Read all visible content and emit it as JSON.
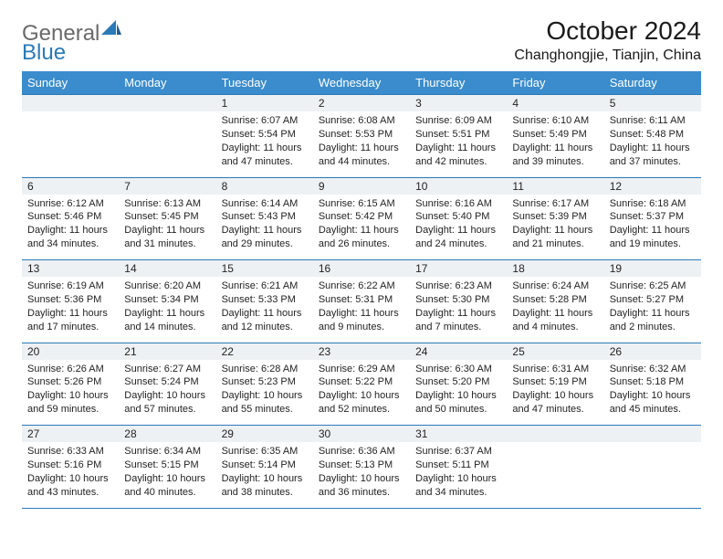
{
  "logo": {
    "general": "General",
    "blue": "Blue"
  },
  "title": "October 2024",
  "location": "Changhongjie, Tianjin, China",
  "colors": {
    "header_bg": "#3b8ccc",
    "header_text": "#ffffff",
    "daynum_bg": "#eef1f3",
    "border": "#2a7ab8",
    "text": "#232323",
    "logo_grey": "#6a6a6a",
    "logo_blue": "#2a7ab8"
  },
  "fonts": {
    "title_size": 28,
    "location_size": 16,
    "dow_size": 13,
    "cell_size": 11
  },
  "dow": [
    "Sunday",
    "Monday",
    "Tuesday",
    "Wednesday",
    "Thursday",
    "Friday",
    "Saturday"
  ],
  "weeks": [
    [
      null,
      null,
      {
        "n": "1",
        "sr": "6:07 AM",
        "ss": "5:54 PM",
        "dl": "11 hours and 47 minutes."
      },
      {
        "n": "2",
        "sr": "6:08 AM",
        "ss": "5:53 PM",
        "dl": "11 hours and 44 minutes."
      },
      {
        "n": "3",
        "sr": "6:09 AM",
        "ss": "5:51 PM",
        "dl": "11 hours and 42 minutes."
      },
      {
        "n": "4",
        "sr": "6:10 AM",
        "ss": "5:49 PM",
        "dl": "11 hours and 39 minutes."
      },
      {
        "n": "5",
        "sr": "6:11 AM",
        "ss": "5:48 PM",
        "dl": "11 hours and 37 minutes."
      }
    ],
    [
      {
        "n": "6",
        "sr": "6:12 AM",
        "ss": "5:46 PM",
        "dl": "11 hours and 34 minutes."
      },
      {
        "n": "7",
        "sr": "6:13 AM",
        "ss": "5:45 PM",
        "dl": "11 hours and 31 minutes."
      },
      {
        "n": "8",
        "sr": "6:14 AM",
        "ss": "5:43 PM",
        "dl": "11 hours and 29 minutes."
      },
      {
        "n": "9",
        "sr": "6:15 AM",
        "ss": "5:42 PM",
        "dl": "11 hours and 26 minutes."
      },
      {
        "n": "10",
        "sr": "6:16 AM",
        "ss": "5:40 PM",
        "dl": "11 hours and 24 minutes."
      },
      {
        "n": "11",
        "sr": "6:17 AM",
        "ss": "5:39 PM",
        "dl": "11 hours and 21 minutes."
      },
      {
        "n": "12",
        "sr": "6:18 AM",
        "ss": "5:37 PM",
        "dl": "11 hours and 19 minutes."
      }
    ],
    [
      {
        "n": "13",
        "sr": "6:19 AM",
        "ss": "5:36 PM",
        "dl": "11 hours and 17 minutes."
      },
      {
        "n": "14",
        "sr": "6:20 AM",
        "ss": "5:34 PM",
        "dl": "11 hours and 14 minutes."
      },
      {
        "n": "15",
        "sr": "6:21 AM",
        "ss": "5:33 PM",
        "dl": "11 hours and 12 minutes."
      },
      {
        "n": "16",
        "sr": "6:22 AM",
        "ss": "5:31 PM",
        "dl": "11 hours and 9 minutes."
      },
      {
        "n": "17",
        "sr": "6:23 AM",
        "ss": "5:30 PM",
        "dl": "11 hours and 7 minutes."
      },
      {
        "n": "18",
        "sr": "6:24 AM",
        "ss": "5:28 PM",
        "dl": "11 hours and 4 minutes."
      },
      {
        "n": "19",
        "sr": "6:25 AM",
        "ss": "5:27 PM",
        "dl": "11 hours and 2 minutes."
      }
    ],
    [
      {
        "n": "20",
        "sr": "6:26 AM",
        "ss": "5:26 PM",
        "dl": "10 hours and 59 minutes."
      },
      {
        "n": "21",
        "sr": "6:27 AM",
        "ss": "5:24 PM",
        "dl": "10 hours and 57 minutes."
      },
      {
        "n": "22",
        "sr": "6:28 AM",
        "ss": "5:23 PM",
        "dl": "10 hours and 55 minutes."
      },
      {
        "n": "23",
        "sr": "6:29 AM",
        "ss": "5:22 PM",
        "dl": "10 hours and 52 minutes."
      },
      {
        "n": "24",
        "sr": "6:30 AM",
        "ss": "5:20 PM",
        "dl": "10 hours and 50 minutes."
      },
      {
        "n": "25",
        "sr": "6:31 AM",
        "ss": "5:19 PM",
        "dl": "10 hours and 47 minutes."
      },
      {
        "n": "26",
        "sr": "6:32 AM",
        "ss": "5:18 PM",
        "dl": "10 hours and 45 minutes."
      }
    ],
    [
      {
        "n": "27",
        "sr": "6:33 AM",
        "ss": "5:16 PM",
        "dl": "10 hours and 43 minutes."
      },
      {
        "n": "28",
        "sr": "6:34 AM",
        "ss": "5:15 PM",
        "dl": "10 hours and 40 minutes."
      },
      {
        "n": "29",
        "sr": "6:35 AM",
        "ss": "5:14 PM",
        "dl": "10 hours and 38 minutes."
      },
      {
        "n": "30",
        "sr": "6:36 AM",
        "ss": "5:13 PM",
        "dl": "10 hours and 36 minutes."
      },
      {
        "n": "31",
        "sr": "6:37 AM",
        "ss": "5:11 PM",
        "dl": "10 hours and 34 minutes."
      },
      null,
      null
    ]
  ],
  "labels": {
    "sunrise": "Sunrise: ",
    "sunset": "Sunset: ",
    "daylight": "Daylight: "
  }
}
